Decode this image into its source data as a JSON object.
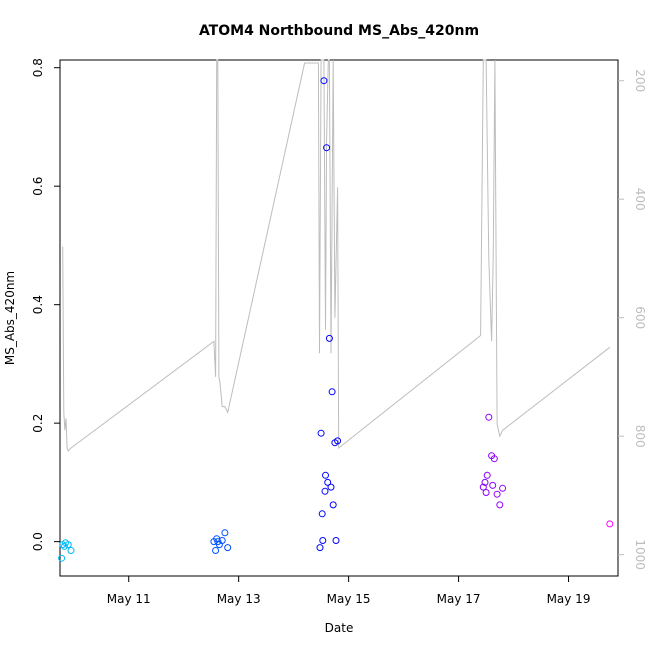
{
  "chart_data": {
    "type": "scatter",
    "title": "ATOM4 Northbound MS_Abs_420nm",
    "xlabel": "Date",
    "ylabel": "MS_Abs_420nm",
    "x_ticks": [
      "May 11",
      "May 13",
      "May 15",
      "May 17",
      "May 19"
    ],
    "x_tick_days": [
      11,
      13,
      15,
      17,
      19
    ],
    "xlim": [
      9.75,
      19.9
    ],
    "ylim": [
      -0.058,
      0.813
    ],
    "y_ticks": [
      0.0,
      0.2,
      0.4,
      0.6,
      0.8
    ],
    "y_tick_labels": [
      "0.0",
      "0.2",
      "0.4",
      "0.6",
      "0.8"
    ],
    "y2_label": "",
    "y2_ticks": [
      200,
      400,
      600,
      800,
      1000
    ],
    "y2_tick_labels": [
      "200",
      "400",
      "600",
      "800",
      "1000"
    ],
    "y2lim": [
      1036,
      165
    ],
    "y2_reversed": true,
    "grid": false,
    "colors": {
      "line": "#bdbdbd",
      "axis": "#000000",
      "right_axis": "#bdbdbd"
    },
    "series": [
      {
        "kind": "points",
        "color_scale": [
          "#00bfff",
          "#0000ff",
          "#ff00ff"
        ],
        "x": [
          9.8,
          9.85,
          9.9,
          9.95,
          9.78,
          9.83,
          12.55,
          12.6,
          12.65,
          12.7,
          12.75,
          12.8,
          12.62,
          12.58,
          14.5,
          14.55,
          14.6,
          14.65,
          14.7,
          14.75,
          14.8,
          14.58,
          14.62,
          14.57,
          14.52,
          14.68,
          14.72,
          14.77,
          14.48,
          14.53,
          17.45,
          17.5,
          17.55,
          17.6,
          17.65,
          17.7,
          17.75,
          17.8,
          17.48,
          17.52,
          17.62,
          19.75
        ],
        "y": [
          -0.005,
          -0.002,
          -0.005,
          -0.015,
          -0.028,
          -0.008,
          0.0,
          0.005,
          -0.005,
          0.002,
          0.015,
          -0.01,
          0.0,
          -0.015,
          0.183,
          0.778,
          0.665,
          0.343,
          0.253,
          0.167,
          0.17,
          0.112,
          0.1,
          0.085,
          0.047,
          0.092,
          0.062,
          0.002,
          -0.01,
          0.002,
          0.092,
          0.083,
          0.21,
          0.145,
          0.14,
          0.08,
          0.062,
          0.09,
          0.1,
          0.112,
          0.095,
          0.03
        ]
      },
      {
        "kind": "line",
        "axis": "right",
        "x": [
          9.8,
          9.82,
          9.84,
          9.86,
          9.88,
          9.9,
          9.95,
          12.55,
          12.58,
          12.6,
          12.62,
          12.64,
          12.66,
          12.7,
          12.75,
          12.8,
          14.2,
          14.45,
          14.47,
          14.5,
          14.52,
          14.55,
          14.58,
          14.6,
          14.63,
          14.65,
          14.68,
          14.72,
          14.75,
          14.8,
          14.82,
          17.4,
          17.45,
          17.5,
          17.55,
          17.6,
          17.63,
          17.66,
          17.7,
          17.75,
          17.8,
          19.75
        ],
        "y": [
          480,
          760,
          790,
          770,
          820,
          825,
          820,
          640,
          700,
          130,
          150,
          700,
          710,
          750,
          750,
          760,
          170,
          170,
          660,
          140,
          150,
          140,
          620,
          300,
          160,
          140,
          660,
          140,
          600,
          380,
          820,
          630,
          100,
          140,
          500,
          640,
          500,
          150,
          780,
          800,
          790,
          650
        ]
      }
    ]
  }
}
